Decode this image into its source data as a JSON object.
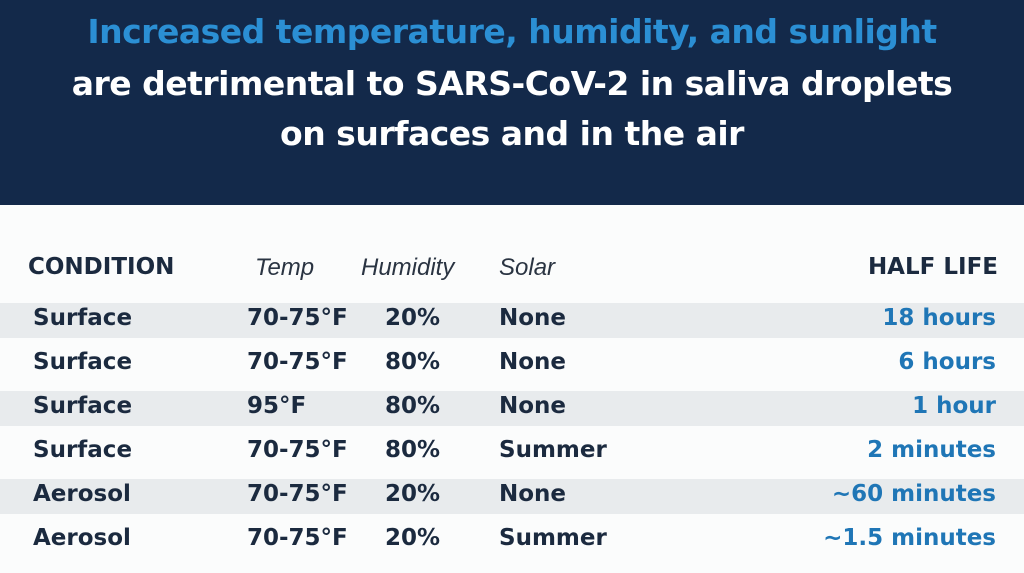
{
  "title": {
    "line1": "Increased temperature, humidity, and sunlight",
    "line2": "are detrimental to SARS-CoV-2 in saliva droplets",
    "line3": "on surfaces and in the air"
  },
  "colors": {
    "banner": "#13294a",
    "accent": "#2b8fd4",
    "half_life": "#1f76b6"
  },
  "table": {
    "headers": [
      "CONDITION",
      "Temp",
      "Humidity",
      "Solar",
      "HALF LIFE"
    ],
    "rows": [
      [
        "Surface",
        "70-75°F",
        "20%",
        "None",
        "18 hours"
      ],
      [
        "Surface",
        "70-75°F",
        "80%",
        "None",
        "6 hours"
      ],
      [
        "Surface",
        "95°F",
        "80%",
        "None",
        "1 hour"
      ],
      [
        "Surface",
        "70-75°F",
        "80%",
        "Summer",
        "2 minutes"
      ],
      [
        "Aerosol",
        "70-75°F",
        "20%",
        "None",
        "~60 minutes"
      ],
      [
        "Aerosol",
        "70-75°F",
        "20%",
        "Summer",
        "~1.5 minutes"
      ]
    ]
  }
}
